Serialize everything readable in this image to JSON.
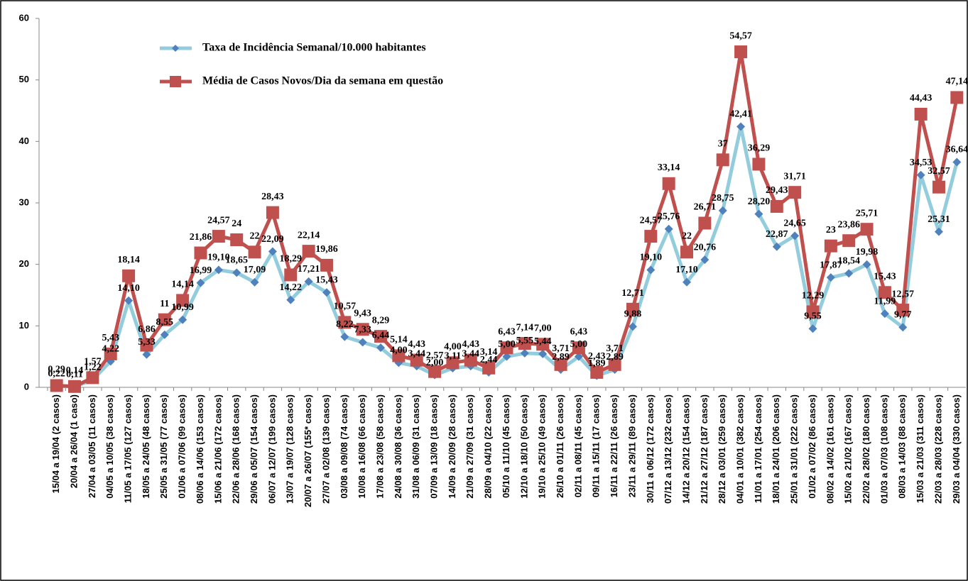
{
  "chart_data": {
    "type": "line",
    "categories": [
      "15/04 a 19/04 (2 casos)",
      "20/04 a 26/04 (1 caso)",
      "27/04 a 03/05 (11 casos)",
      "04/05 a 10/05 (38 casos)",
      "11/05 a 17/05 (127 casos)",
      "18/05 a 24/05 (48 casos)",
      "25/05 a 31/05 (77 casos)",
      "01/06 a 07/06 (99 casos)",
      "08/06 a 14/06 (153 casos)",
      "15/06 a 21/06 (172 casos)",
      "22/06 a 28/06 (168 casos)",
      "29/06 a 05/07 (154 casos)",
      "06/07 a 12/07 (199 casos)",
      "13/07 a 19/07 (128 casos)",
      "20/07 a 26/07 (155* casos)",
      "27/07 a 02/08 (139 casos)",
      "03/08 a 09/08 (74 casos)",
      "10/08 a 16/08 (66 casos)",
      "17/08 a 23/08 (58 casos)",
      "24/08 a 30/08 (36 casos)",
      "31/08 a 06/09 (31 casos)",
      "07/09 a 13/09 (18 casos)",
      "14/09 a 20/09 (28 casos)",
      "21/09 a 27/09 (31 casos)",
      "28/09 a 04/10 (22 casos)",
      "05/10 a 11/10 (45 casos)",
      "12/10 a 18/10 (50 casos)",
      "19/10 a 25/10 (49 casos)",
      "26/10 a 01/11 (26 casos)",
      "02/11 a 08/11 (45 casos)",
      "09/11 a 15/11 (17 casos)",
      "16/11 a 22/11 (26 casos)",
      "23/11 a 29/11 (89 casos)",
      "30/11 a 06/12 (172 casos)",
      "07/12 a 13/12 (232 casos)",
      "14/12 a 20/12 (154 casos)",
      "21/12 a 27/12 (187 casos)",
      "28/12 a 03/01 (259 casos)",
      "04/01 a 10/01 (382 casos)",
      "11/01 a 17/01 (254 casos)",
      "18/01 a 24/01 (206 casos)",
      "25/01 a 31/01 (222 casos)",
      "01/02 a 07/02 (86 casos)",
      "08/02 a 14/02 (161 casos)",
      "15/02 a 21/02 (167 casos)",
      "22/02 a 28/02 (180 casos)",
      "01/03 a 07/03 (108 casos)",
      "08/03 a 14/03 (88 casos)",
      "15/03 a 21/03 (311 casos)",
      "22/03 a 28/03 (228 casos)",
      "29/03 a 04/04 (330 casos)"
    ],
    "series": [
      {
        "name": "Taxa de Incidência Semanal/10.000 habitantes",
        "color": "#93cddd",
        "marker": "diamond",
        "marker_color": "#4f81bd",
        "values": [
          0.22,
          0.11,
          1.22,
          4.22,
          14.1,
          5.33,
          8.55,
          10.99,
          16.99,
          19.1,
          18.65,
          17.09,
          22.09,
          14.22,
          17.21,
          15.43,
          8.22,
          7.33,
          6.44,
          4.0,
          3.44,
          2.0,
          3.11,
          3.44,
          2.44,
          5.0,
          5.55,
          5.44,
          2.89,
          5.0,
          1.89,
          2.89,
          9.88,
          19.1,
          25.76,
          17.1,
          20.76,
          28.75,
          42.41,
          28.2,
          22.87,
          24.65,
          9.55,
          17.87,
          18.54,
          19.98,
          11.99,
          9.77,
          34.53,
          25.31,
          36.64
        ],
        "value_labels": [
          "0,22",
          "0,11",
          "1,22",
          "4,22",
          "14,10",
          "5,33",
          "8,55",
          "10,99",
          "16,99",
          "19,10",
          "18,65",
          "17,09",
          "22,09",
          "14,22",
          "17,21",
          "15,43",
          "8,22",
          "7,33",
          "6,44",
          "4,00",
          "3,44",
          "2,00",
          "3,11",
          "3,44",
          "2,44",
          "5,00",
          "5,55",
          "5,44",
          "2,89",
          "5,00",
          "1,89",
          "2,89",
          "9,88",
          "19,10",
          "25,76",
          "17,10",
          "20,76",
          "28,75",
          "42,41",
          "28,20",
          "22,87",
          "24,65",
          "9,55",
          "17,87",
          "18,54",
          "19,98",
          "11,99",
          "9,77",
          "34,53",
          "25,31",
          "36,64"
        ]
      },
      {
        "name": "Média de Casos Novos/Dia da semana em questão",
        "color": "#c0504d",
        "marker": "square",
        "marker_color": "#c0504d",
        "values": [
          0.29,
          0.14,
          1.57,
          5.43,
          18.14,
          6.86,
          11,
          14.14,
          21.86,
          24.57,
          24,
          22,
          28.43,
          18.29,
          22.14,
          19.86,
          10.57,
          9.43,
          8.29,
          5.14,
          4.43,
          2.57,
          4.0,
          4.43,
          3.14,
          6.43,
          7.14,
          7.0,
          3.71,
          6.43,
          2.43,
          3.71,
          12.71,
          24.57,
          33.14,
          22,
          26.71,
          37,
          54.57,
          36.29,
          29.43,
          31.71,
          12.29,
          23,
          23.86,
          25.71,
          15.43,
          12.57,
          44.43,
          32.57,
          47.14
        ],
        "value_labels": [
          "0,29",
          "0,14",
          "1,57",
          "5,43",
          "18,14",
          "6,86",
          "11",
          "14,14",
          "21,86",
          "24,57",
          "24",
          "22",
          "28,43",
          "18,29",
          "22,14",
          "19,86",
          "10,57",
          "9,43",
          "8,29",
          "5,14",
          "4,43",
          "2,57",
          "4,00",
          "4,43",
          "3,14",
          "6,43",
          "7,14",
          "7,00",
          "3,71",
          "6,43",
          "2,43",
          "3,71",
          "12,71",
          "24,57",
          "33,14",
          "22",
          "26,71",
          "37",
          "54,57",
          "36,29",
          "29,43",
          "31,71",
          "12,29",
          "23",
          "23,86",
          "25,71",
          "15,43",
          "12,57",
          "44,43",
          "32,57",
          "47,14"
        ]
      }
    ],
    "ylim": [
      0,
      60
    ],
    "yticks": [
      0,
      10,
      20,
      30,
      40,
      50,
      60
    ],
    "grid": false,
    "legend": "top-left"
  }
}
